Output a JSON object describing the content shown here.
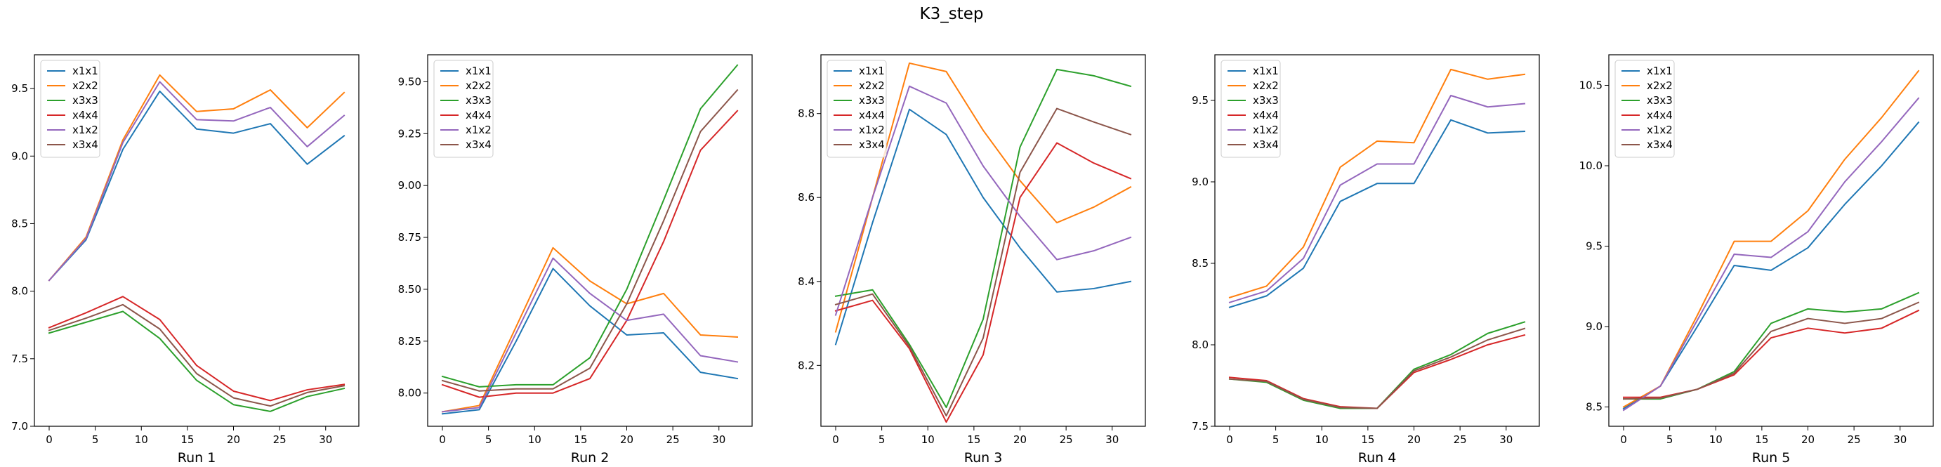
{
  "figure": {
    "title": "K3_step"
  },
  "colors": {
    "x1x1": "#1f77b4",
    "x2x2": "#ff7f0e",
    "x3x3": "#2ca02c",
    "x4x4": "#d62728",
    "x1x2": "#9467bd",
    "x3x4": "#8c564b"
  },
  "chart_data": [
    {
      "type": "line",
      "xlabel": "Run 1",
      "x": [
        0,
        4,
        8,
        12,
        16,
        20,
        24,
        28,
        32
      ],
      "xticks": [
        0,
        5,
        10,
        15,
        20,
        25,
        30
      ],
      "ylim": [
        7.0,
        9.75
      ],
      "yticks": [
        7.0,
        7.5,
        8.0,
        8.5,
        9.0,
        9.5
      ],
      "ytick_labels": [
        "7.0",
        "7.5",
        "8.0",
        "8.5",
        "9.0",
        "9.5"
      ],
      "legend": "top-left",
      "series": [
        {
          "name": "x1x1",
          "values": [
            8.08,
            8.38,
            9.05,
            9.48,
            9.2,
            9.17,
            9.24,
            8.94,
            9.15
          ]
        },
        {
          "name": "x2x2",
          "values": [
            8.08,
            8.4,
            9.12,
            9.6,
            9.33,
            9.35,
            9.49,
            9.21,
            9.47
          ]
        },
        {
          "name": "x3x3",
          "values": [
            7.69,
            7.77,
            7.85,
            7.65,
            7.34,
            7.16,
            7.11,
            7.22,
            7.28
          ]
        },
        {
          "name": "x4x4",
          "values": [
            7.73,
            7.84,
            7.96,
            7.79,
            7.45,
            7.26,
            7.19,
            7.27,
            7.31
          ]
        },
        {
          "name": "x1x2",
          "values": [
            8.08,
            8.39,
            9.1,
            9.55,
            9.27,
            9.26,
            9.36,
            9.07,
            9.3
          ]
        },
        {
          "name": "x3x4",
          "values": [
            7.71,
            7.8,
            7.9,
            7.72,
            7.39,
            7.21,
            7.15,
            7.25,
            7.3
          ]
        }
      ]
    },
    {
      "type": "line",
      "xlabel": "Run 2",
      "x": [
        0,
        4,
        8,
        12,
        16,
        20,
        24,
        28,
        32
      ],
      "xticks": [
        0,
        5,
        10,
        15,
        20,
        25,
        30
      ],
      "ylim": [
        7.84,
        9.63
      ],
      "yticks": [
        8.0,
        8.25,
        8.5,
        8.75,
        9.0,
        9.25,
        9.5
      ],
      "ytick_labels": [
        "8.00",
        "8.25",
        "8.50",
        "8.75",
        "9.00",
        "9.25",
        "9.50"
      ],
      "legend": "top-left",
      "series": [
        {
          "name": "x1x1",
          "values": [
            7.9,
            7.92,
            8.25,
            8.6,
            8.42,
            8.28,
            8.29,
            8.1,
            8.07
          ]
        },
        {
          "name": "x2x2",
          "values": [
            7.91,
            7.94,
            8.32,
            8.7,
            8.54,
            8.43,
            8.48,
            8.28,
            8.27
          ]
        },
        {
          "name": "x3x3",
          "values": [
            8.08,
            8.03,
            8.04,
            8.04,
            8.17,
            8.5,
            8.93,
            9.37,
            9.58
          ]
        },
        {
          "name": "x4x4",
          "values": [
            8.04,
            7.98,
            8.0,
            8.0,
            8.07,
            8.35,
            8.73,
            9.17,
            9.36
          ]
        },
        {
          "name": "x1x2",
          "values": [
            7.91,
            7.93,
            8.29,
            8.65,
            8.48,
            8.35,
            8.38,
            8.18,
            8.15
          ]
        },
        {
          "name": "x3x4",
          "values": [
            8.06,
            8.01,
            8.02,
            8.02,
            8.12,
            8.43,
            8.83,
            9.26,
            9.46
          ]
        }
      ]
    },
    {
      "type": "line",
      "xlabel": "Run 3",
      "x": [
        0,
        4,
        8,
        12,
        16,
        20,
        24,
        28,
        32
      ],
      "xticks": [
        0,
        5,
        10,
        15,
        20,
        25,
        30
      ],
      "ylim": [
        8.055,
        8.94
      ],
      "yticks": [
        8.2,
        8.4,
        8.6,
        8.8
      ],
      "ytick_labels": [
        "8.2",
        "8.4",
        "8.6",
        "8.8"
      ],
      "legend": "top-left",
      "series": [
        {
          "name": "x1x1",
          "values": [
            8.25,
            8.54,
            8.81,
            8.75,
            8.6,
            8.48,
            8.375,
            8.383,
            8.4
          ]
        },
        {
          "name": "x2x2",
          "values": [
            8.28,
            8.6,
            8.92,
            8.9,
            8.76,
            8.64,
            8.54,
            8.577,
            8.625
          ]
        },
        {
          "name": "x3x3",
          "values": [
            8.365,
            8.38,
            8.25,
            8.1,
            8.31,
            8.72,
            8.905,
            8.89,
            8.865
          ]
        },
        {
          "name": "x4x4",
          "values": [
            8.33,
            8.355,
            8.24,
            8.065,
            8.225,
            8.6,
            8.73,
            8.682,
            8.645
          ]
        },
        {
          "name": "x1x2",
          "values": [
            8.32,
            8.6,
            8.865,
            8.825,
            8.675,
            8.555,
            8.452,
            8.473,
            8.505
          ]
        },
        {
          "name": "x3x4",
          "values": [
            8.345,
            8.37,
            8.245,
            8.08,
            8.265,
            8.66,
            8.812,
            8.78,
            8.75
          ]
        }
      ]
    },
    {
      "type": "line",
      "xlabel": "Run 4",
      "x": [
        0,
        4,
        8,
        12,
        16,
        20,
        24,
        28,
        32
      ],
      "xticks": [
        0,
        5,
        10,
        15,
        20,
        25,
        30
      ],
      "ylim": [
        7.5,
        9.78
      ],
      "yticks": [
        7.5,
        8.0,
        8.5,
        9.0,
        9.5
      ],
      "ytick_labels": [
        "7.5",
        "8.0",
        "8.5",
        "9.0",
        "9.5"
      ],
      "legend": "top-left",
      "series": [
        {
          "name": "x1x1",
          "values": [
            8.23,
            8.3,
            8.47,
            8.88,
            8.99,
            8.99,
            9.38,
            9.3,
            9.31
          ]
        },
        {
          "name": "x2x2",
          "values": [
            8.29,
            8.36,
            8.6,
            9.09,
            9.25,
            9.24,
            9.69,
            9.63,
            9.66
          ]
        },
        {
          "name": "x3x3",
          "values": [
            7.79,
            7.77,
            7.66,
            7.61,
            7.61,
            7.85,
            7.94,
            8.07,
            8.14
          ]
        },
        {
          "name": "x4x4",
          "values": [
            7.8,
            7.78,
            7.67,
            7.62,
            7.61,
            7.83,
            7.91,
            8.0,
            8.06
          ]
        },
        {
          "name": "x1x2",
          "values": [
            8.26,
            8.33,
            8.53,
            8.98,
            9.11,
            9.11,
            9.53,
            9.46,
            9.48
          ]
        },
        {
          "name": "x3x4",
          "values": [
            7.79,
            7.775,
            7.665,
            7.615,
            7.61,
            7.84,
            7.925,
            8.03,
            8.1
          ]
        }
      ]
    },
    {
      "type": "line",
      "xlabel": "Run 5",
      "x": [
        0,
        4,
        8,
        12,
        16,
        20,
        24,
        28,
        32
      ],
      "xticks": [
        0,
        5,
        10,
        15,
        20,
        25,
        30
      ],
      "ylim": [
        8.38,
        10.69
      ],
      "yticks": [
        8.5,
        9.0,
        9.5,
        10.0,
        10.5
      ],
      "ytick_labels": [
        "8.5",
        "9.0",
        "9.5",
        "10.0",
        "10.5"
      ],
      "legend": "top-left",
      "series": [
        {
          "name": "x1x1",
          "values": [
            8.49,
            8.63,
            9.0,
            9.38,
            9.35,
            9.49,
            9.76,
            10.0,
            10.27
          ]
        },
        {
          "name": "x2x2",
          "values": [
            8.5,
            8.63,
            9.07,
            9.53,
            9.53,
            9.72,
            10.04,
            10.3,
            10.59
          ]
        },
        {
          "name": "x3x3",
          "values": [
            8.55,
            8.55,
            8.61,
            8.72,
            9.02,
            9.11,
            9.09,
            9.11,
            9.21
          ]
        },
        {
          "name": "x4x4",
          "values": [
            8.56,
            8.56,
            8.61,
            8.7,
            8.93,
            8.99,
            8.96,
            8.99,
            9.1
          ]
        },
        {
          "name": "x1x2",
          "values": [
            8.48,
            8.63,
            9.04,
            9.45,
            9.43,
            9.59,
            9.9,
            10.15,
            10.42
          ]
        },
        {
          "name": "x3x4",
          "values": [
            8.55,
            8.555,
            8.61,
            8.71,
            8.97,
            9.05,
            9.02,
            9.05,
            9.15
          ]
        }
      ]
    }
  ]
}
